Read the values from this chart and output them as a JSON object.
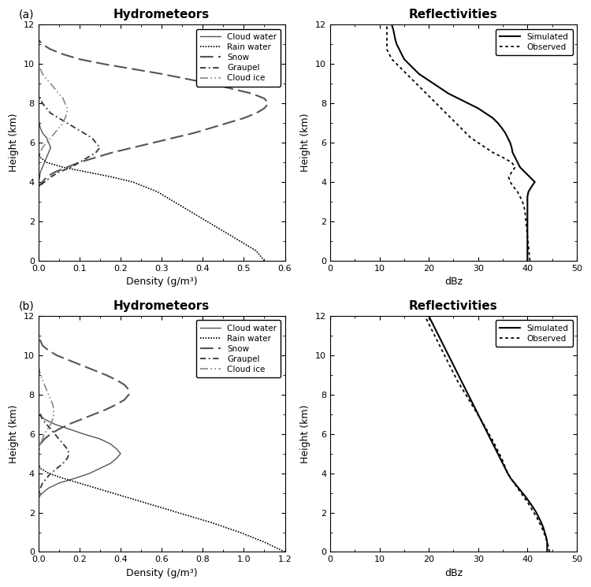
{
  "title_a_hydro": "Hydrometeors",
  "title_a_refl": "Reflectivities",
  "title_b_hydro": "Hydrometeors",
  "title_b_refl": "Reflectivities",
  "label_a": "(a)",
  "label_b": "(b)",
  "xlabel_hydro": "Density (g/m³)",
  "xlabel_refl": "dBz",
  "ylabel": "Height (km)",
  "hydro_legend": [
    "Cloud water",
    "Rain water",
    "Snow",
    "Graupel",
    "Cloud ice"
  ],
  "refl_legend": [
    "Simulated",
    "Observed"
  ],
  "height_km": [
    0,
    0.25,
    0.5,
    0.75,
    1.0,
    1.25,
    1.5,
    1.75,
    2.0,
    2.25,
    2.5,
    2.75,
    3.0,
    3.25,
    3.5,
    3.75,
    4.0,
    4.25,
    4.5,
    4.75,
    5.0,
    5.25,
    5.5,
    5.75,
    6.0,
    6.25,
    6.5,
    6.75,
    7.0,
    7.25,
    7.5,
    7.75,
    8.0,
    8.25,
    8.5,
    8.75,
    9.0,
    9.25,
    9.5,
    9.75,
    10.0,
    10.25,
    10.5,
    10.75,
    11.0,
    11.25,
    11.5,
    11.75,
    12.0
  ],
  "a_cloud_water": [
    0,
    0,
    0,
    0,
    0,
    0,
    0,
    0,
    0,
    0,
    0,
    0,
    0,
    0,
    0,
    0,
    0.001,
    0.003,
    0.005,
    0.01,
    0.015,
    0.02,
    0.025,
    0.03,
    0.025,
    0.02,
    0.01,
    0.005,
    0.002,
    0,
    0,
    0,
    0,
    0,
    0,
    0,
    0,
    0,
    0,
    0,
    0,
    0,
    0,
    0,
    0,
    0,
    0,
    0,
    0
  ],
  "a_rain_water": [
    0.55,
    0.54,
    0.53,
    0.51,
    0.49,
    0.47,
    0.45,
    0.43,
    0.41,
    0.39,
    0.37,
    0.35,
    0.33,
    0.31,
    0.29,
    0.26,
    0.23,
    0.18,
    0.12,
    0.06,
    0.02,
    0.005,
    0,
    0,
    0,
    0,
    0,
    0,
    0,
    0,
    0,
    0,
    0,
    0,
    0,
    0,
    0,
    0,
    0,
    0,
    0,
    0,
    0,
    0,
    0,
    0,
    0,
    0,
    0
  ],
  "a_snow": [
    0,
    0,
    0,
    0,
    0,
    0,
    0,
    0,
    0,
    0,
    0,
    0,
    0,
    0,
    0,
    0,
    0.01,
    0.02,
    0.04,
    0.07,
    0.1,
    0.14,
    0.18,
    0.23,
    0.28,
    0.33,
    0.38,
    0.42,
    0.46,
    0.5,
    0.53,
    0.55,
    0.56,
    0.55,
    0.52,
    0.47,
    0.42,
    0.36,
    0.3,
    0.23,
    0.16,
    0.1,
    0.06,
    0.03,
    0.01,
    0,
    0,
    0,
    0
  ],
  "a_graupel": [
    0,
    0,
    0,
    0,
    0,
    0,
    0,
    0,
    0,
    0,
    0,
    0,
    0,
    0,
    0,
    0,
    0.015,
    0.03,
    0.05,
    0.08,
    0.1,
    0.12,
    0.14,
    0.15,
    0.14,
    0.13,
    0.11,
    0.09,
    0.07,
    0.05,
    0.03,
    0.02,
    0.01,
    0.005,
    0,
    0,
    0,
    0,
    0,
    0,
    0,
    0,
    0,
    0,
    0,
    0,
    0,
    0,
    0
  ],
  "a_cloud_ice": [
    0,
    0,
    0,
    0,
    0,
    0,
    0,
    0,
    0,
    0,
    0,
    0,
    0,
    0,
    0,
    0,
    0,
    0,
    0,
    0,
    0,
    0,
    0.005,
    0.01,
    0.02,
    0.03,
    0.04,
    0.05,
    0.06,
    0.065,
    0.07,
    0.07,
    0.065,
    0.06,
    0.05,
    0.04,
    0.03,
    0.02,
    0.01,
    0.005,
    0,
    0,
    0,
    0,
    0,
    0,
    0,
    0,
    0
  ],
  "a_refl_sim": [
    40,
    40,
    40,
    40,
    40,
    40,
    40,
    40,
    40,
    40,
    40,
    40,
    40,
    40,
    40.2,
    40.8,
    41.5,
    40.5,
    39.5,
    38.5,
    38.0,
    37.5,
    37.0,
    36.8,
    36.5,
    36.0,
    35.5,
    34.8,
    34.0,
    33.0,
    31.5,
    30.0,
    28.0,
    26.0,
    24.0,
    22.5,
    21.0,
    19.5,
    18.0,
    17.0,
    16.0,
    15.0,
    14.5,
    14.0,
    13.5,
    13.2,
    13.0,
    12.8,
    12.5
  ],
  "a_refl_obs": [
    40.5,
    40.4,
    40.3,
    40.2,
    40.1,
    40.0,
    39.9,
    39.8,
    39.7,
    39.6,
    39.5,
    39.3,
    39.0,
    38.5,
    38.0,
    37.2,
    36.5,
    36.2,
    36.8,
    37.5,
    36.8,
    35.0,
    33.0,
    31.5,
    30.0,
    28.5,
    27.5,
    26.5,
    25.5,
    24.5,
    23.5,
    22.5,
    21.5,
    20.5,
    19.5,
    18.5,
    17.5,
    16.5,
    15.5,
    14.5,
    13.5,
    12.5,
    12.0,
    11.5,
    11.5,
    11.5,
    11.5,
    11.5,
    11.5
  ],
  "b_cloud_water": [
    0,
    0,
    0,
    0,
    0,
    0,
    0,
    0,
    0,
    0,
    0,
    0,
    0.02,
    0.05,
    0.1,
    0.18,
    0.25,
    0.3,
    0.35,
    0.38,
    0.4,
    0.38,
    0.35,
    0.3,
    0.22,
    0.15,
    0.08,
    0.03,
    0,
    0,
    0,
    0,
    0,
    0,
    0,
    0,
    0,
    0,
    0,
    0,
    0,
    0,
    0,
    0,
    0,
    0,
    0,
    0,
    0
  ],
  "b_rain_water": [
    1.2,
    1.15,
    1.1,
    1.04,
    0.98,
    0.91,
    0.84,
    0.76,
    0.68,
    0.6,
    0.52,
    0.44,
    0.36,
    0.28,
    0.2,
    0.12,
    0.05,
    0.01,
    0,
    0,
    0,
    0,
    0,
    0,
    0,
    0,
    0,
    0,
    0,
    0,
    0,
    0,
    0,
    0,
    0,
    0,
    0,
    0,
    0,
    0,
    0,
    0,
    0,
    0,
    0,
    0,
    0,
    0,
    0
  ],
  "b_snow": [
    0,
    0,
    0,
    0,
    0,
    0,
    0,
    0,
    0,
    0,
    0,
    0,
    0,
    0,
    0,
    0,
    0,
    0,
    0,
    0,
    0,
    0,
    0.01,
    0.03,
    0.06,
    0.1,
    0.15,
    0.21,
    0.27,
    0.33,
    0.38,
    0.42,
    0.44,
    0.44,
    0.42,
    0.38,
    0.33,
    0.27,
    0.21,
    0.15,
    0.09,
    0.05,
    0.02,
    0.01,
    0,
    0,
    0,
    0,
    0
  ],
  "b_graupel": [
    0,
    0,
    0,
    0,
    0,
    0,
    0,
    0,
    0,
    0,
    0,
    0,
    0.005,
    0.01,
    0.02,
    0.04,
    0.06,
    0.09,
    0.12,
    0.14,
    0.15,
    0.14,
    0.12,
    0.1,
    0.08,
    0.06,
    0.04,
    0.02,
    0.01,
    0,
    0,
    0,
    0,
    0,
    0,
    0,
    0,
    0,
    0,
    0,
    0,
    0,
    0,
    0,
    0,
    0,
    0,
    0,
    0
  ],
  "b_cloud_ice": [
    0,
    0,
    0,
    0,
    0,
    0,
    0,
    0,
    0,
    0,
    0,
    0,
    0,
    0,
    0,
    0,
    0,
    0,
    0,
    0,
    0,
    0.005,
    0.01,
    0.02,
    0.03,
    0.045,
    0.06,
    0.07,
    0.075,
    0.075,
    0.07,
    0.06,
    0.05,
    0.04,
    0.03,
    0.02,
    0.01,
    0.005,
    0,
    0,
    0,
    0,
    0,
    0,
    0,
    0,
    0,
    0,
    0
  ],
  "b_refl_sim": [
    44,
    44,
    44,
    43.8,
    43.5,
    43.2,
    42.8,
    42.3,
    41.8,
    41.2,
    40.5,
    39.8,
    39.0,
    38.2,
    37.4,
    36.6,
    36.0,
    35.5,
    35.0,
    34.5,
    34.0,
    33.5,
    33.0,
    32.5,
    32.0,
    31.5,
    31.0,
    30.5,
    30.0,
    29.5,
    29.0,
    28.5,
    28.0,
    27.5,
    27.0,
    26.5,
    26.0,
    25.5,
    25.0,
    24.5,
    24.0,
    23.5,
    23.0,
    22.5,
    22.0,
    21.5,
    21.0,
    20.5,
    20.0
  ],
  "b_refl_obs": [
    44.5,
    44.3,
    44.0,
    43.7,
    43.3,
    42.9,
    42.4,
    41.9,
    41.3,
    40.7,
    40.1,
    39.4,
    38.7,
    38.0,
    37.3,
    36.6,
    36.0,
    35.6,
    35.2,
    34.8,
    34.3,
    33.8,
    33.3,
    32.8,
    32.2,
    31.7,
    31.1,
    30.5,
    29.9,
    29.3,
    28.7,
    28.1,
    27.5,
    26.9,
    26.3,
    25.7,
    25.2,
    24.7,
    24.2,
    23.7,
    23.2,
    22.7,
    22.2,
    21.7,
    21.2,
    20.7,
    20.2,
    19.7,
    19.2
  ],
  "a_xlim_hydro": [
    0,
    0.6
  ],
  "a_xlim_refl": [
    0,
    50
  ],
  "b_xlim_hydro": [
    0,
    1.2
  ],
  "b_xlim_refl": [
    0,
    50
  ],
  "ylim": [
    0,
    12
  ],
  "yticks": [
    0,
    2,
    4,
    6,
    8,
    10,
    12
  ],
  "a_xticks_hydro": [
    0.0,
    0.1,
    0.2,
    0.3,
    0.4,
    0.5,
    0.6
  ],
  "b_xticks_hydro": [
    0.0,
    0.2,
    0.4,
    0.6,
    0.8,
    1.0,
    1.2
  ],
  "xticks_refl": [
    0,
    10,
    20,
    30,
    40,
    50
  ],
  "bg_color": "#f0f0f0"
}
